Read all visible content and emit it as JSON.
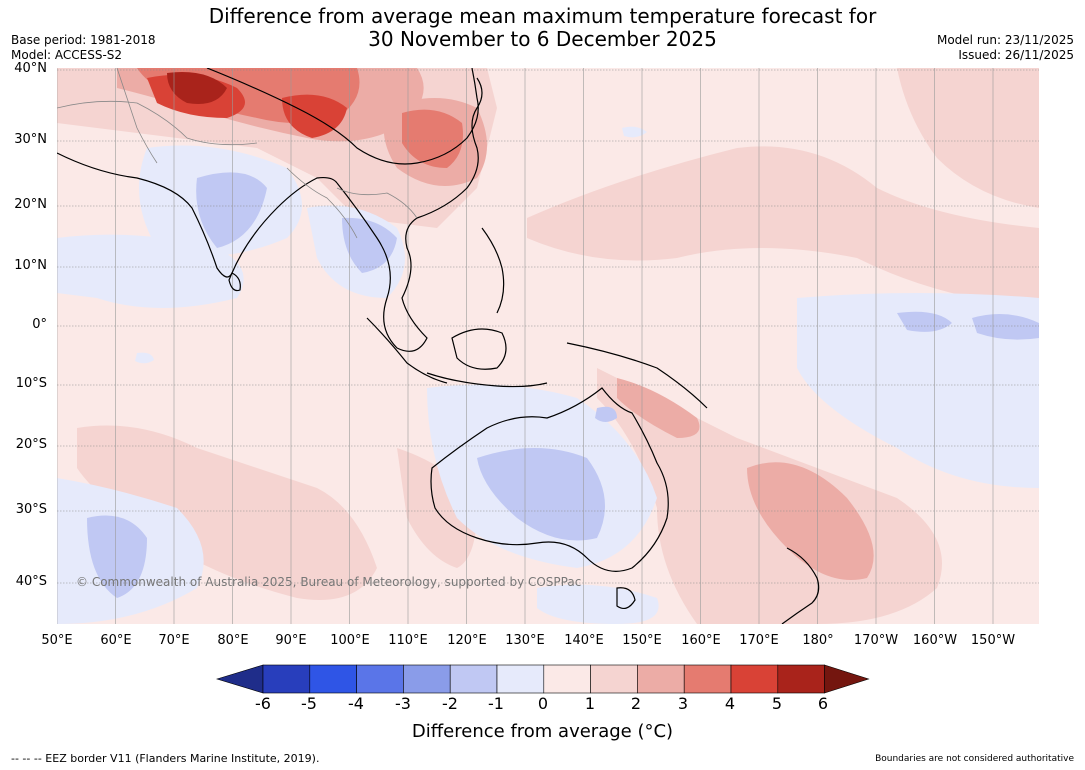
{
  "title": {
    "line1": "Difference from average mean maximum temperature forecast for",
    "line2": "30 November to 6 December 2025"
  },
  "meta": {
    "base_period": "Base period: 1981-2018",
    "model": "Model: ACCESS-S2",
    "model_run": "Model run: 23/11/2025",
    "issued": "Issued: 26/11/2025"
  },
  "map": {
    "latitude_labels": [
      "40°N",
      "30°N",
      "20°N",
      "10°N",
      "0°",
      "10°S",
      "20°S",
      "30°S",
      "40°S"
    ],
    "longitude_labels": [
      "50°E",
      "60°E",
      "70°E",
      "80°E",
      "90°E",
      "100°E",
      "110°E",
      "120°E",
      "130°E",
      "140°E",
      "150°E",
      "160°E",
      "170°E",
      "180°",
      "170°W",
      "160°W",
      "150°W"
    ],
    "copyright": "© Commonwealth of Australia 2025, Bureau of Meteorology, supported by COSPPac",
    "ocean_color": "#fbe9e7"
  },
  "colorbar": {
    "ticks": [
      "-6",
      "-5",
      "-4",
      "-3",
      "-2",
      "-1",
      "0",
      "1",
      "2",
      "3",
      "4",
      "5",
      "6"
    ],
    "colors": [
      "#1f2d8a",
      "#283ebc",
      "#2f55e6",
      "#5a75e8",
      "#8a9ce9",
      "#c0c8f3",
      "#e6eafb",
      "#fbe9e7",
      "#f5d4d1",
      "#ecaca6",
      "#e57b70",
      "#d94236",
      "#a9231b",
      "#74160f"
    ],
    "label": "Difference from average (°C)"
  },
  "footer": {
    "eez": "--  --  -- EEZ border V11 (Flanders Marine Institute, 2019).",
    "note": "Boundaries are not considered authoritative"
  }
}
